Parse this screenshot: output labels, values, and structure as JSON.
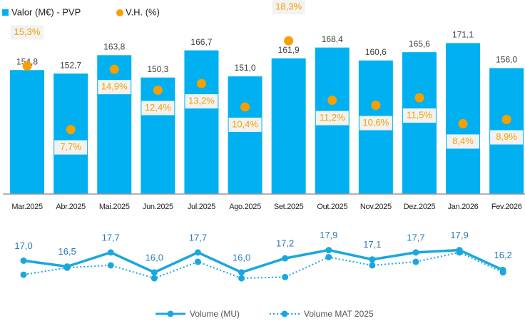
{
  "chart_data": [
    {
      "type": "bar",
      "categories": [
        "Mar.2025",
        "Abr.2025",
        "Mai.2025",
        "Jun.2025",
        "Jul.2025",
        "Ago.2025",
        "Set.2025",
        "Out.2025",
        "Nov.2025",
        "Dez.2025",
        "Jan.2026",
        "Fev.2026"
      ],
      "series": [
        {
          "name": "Valor (M€) - PVP",
          "color": "#00b0f0",
          "values": [
            154.8,
            152.7,
            163.8,
            150.3,
            166.7,
            151.0,
            161.9,
            168.4,
            160.6,
            165.6,
            171.1,
            156.0
          ],
          "value_labels": [
            "154,8",
            "152,7",
            "163,8",
            "150,3",
            "166,7",
            "151,0",
            "161,9",
            "168,4",
            "160,6",
            "165,6",
            "171,1",
            "156,0"
          ]
        },
        {
          "name": "V.H. (%)",
          "color": "#f5a000",
          "axis": "y2",
          "marker": "dot",
          "values": [
            15.3,
            7.7,
            14.9,
            12.4,
            13.2,
            10.4,
            18.3,
            11.2,
            10.6,
            11.5,
            8.4,
            8.9
          ],
          "value_labels": [
            "15,3%",
            "7,7%",
            "14,9%",
            "12,4%",
            "13,2%",
            "10,4%",
            "18,3%",
            "11,2%",
            "10,6%",
            "11,5%",
            "8,4%",
            "8,9%"
          ]
        }
      ],
      "ylim": [
        80,
        176
      ],
      "y2lim": [
        0,
        19
      ],
      "legend": "top-left"
    },
    {
      "type": "line",
      "series": [
        {
          "name": "Volume (MU)",
          "color": "#1aa7e0",
          "dash": "solid",
          "values": [
            17.0,
            16.5,
            17.7,
            16.0,
            17.7,
            16.0,
            17.2,
            17.9,
            17.1,
            17.7,
            17.9,
            16.2
          ],
          "value_labels": [
            "17,0",
            "16,5",
            "17,7",
            "16,0",
            "17,7",
            "16,0",
            "17,2",
            "17,9",
            "17,1",
            "17,7",
            "17,9",
            "16,2"
          ]
        },
        {
          "name": "Volume MAT 2025",
          "color": "#1aa7e0",
          "dash": "dotted",
          "values": [
            15.8,
            16.4,
            16.6,
            15.5,
            16.9,
            15.5,
            15.6,
            17.3,
            16.6,
            16.9,
            17.7,
            16.0
          ]
        }
      ],
      "ylim": [
        15.2,
        18.3
      ],
      "legend": "bottom"
    }
  ]
}
